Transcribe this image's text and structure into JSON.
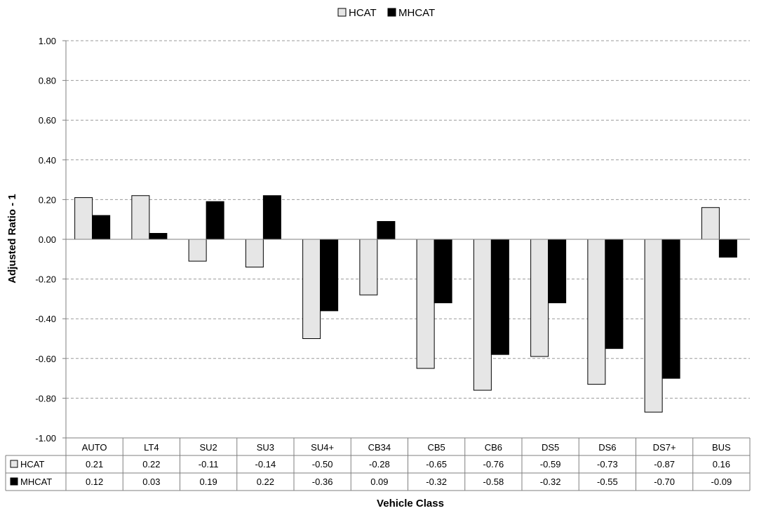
{
  "chart_data": {
    "type": "bar",
    "title": "",
    "xlabel": "Vehicle Class",
    "ylabel": "Adjusted Ratio - 1",
    "ylim": [
      -1.0,
      1.0
    ],
    "yticks": [
      "1.00",
      "0.80",
      "0.60",
      "0.40",
      "0.20",
      "0.00",
      "-0.20",
      "-0.40",
      "-0.60",
      "-0.80",
      "-1.00"
    ],
    "categories": [
      "AUTO",
      "LT4",
      "SU2",
      "SU3",
      "SU4+",
      "CB34",
      "CB5",
      "CB6",
      "DS5",
      "DS6",
      "DS7+",
      "BUS"
    ],
    "grid": true,
    "legend_position": "top",
    "data_table": true,
    "series": [
      {
        "name": "HCAT",
        "color": "#e6e6e6",
        "values": [
          0.21,
          0.22,
          -0.11,
          -0.14,
          -0.5,
          -0.28,
          -0.65,
          -0.76,
          -0.59,
          -0.73,
          -0.87,
          0.16
        ],
        "labels": [
          "0.21",
          "0.22",
          "-0.11",
          "-0.14",
          "-0.50",
          "-0.28",
          "-0.65",
          "-0.76",
          "-0.59",
          "-0.73",
          "-0.87",
          "0.16"
        ]
      },
      {
        "name": "MHCAT",
        "color": "#000000",
        "values": [
          0.12,
          0.03,
          0.19,
          0.22,
          -0.36,
          0.09,
          -0.32,
          -0.58,
          -0.32,
          -0.55,
          -0.7,
          -0.09
        ],
        "labels": [
          "0.12",
          "0.03",
          "0.19",
          "0.22",
          "-0.36",
          "0.09",
          "-0.32",
          "-0.58",
          "-0.32",
          "-0.55",
          "-0.70",
          "-0.09"
        ]
      }
    ]
  }
}
